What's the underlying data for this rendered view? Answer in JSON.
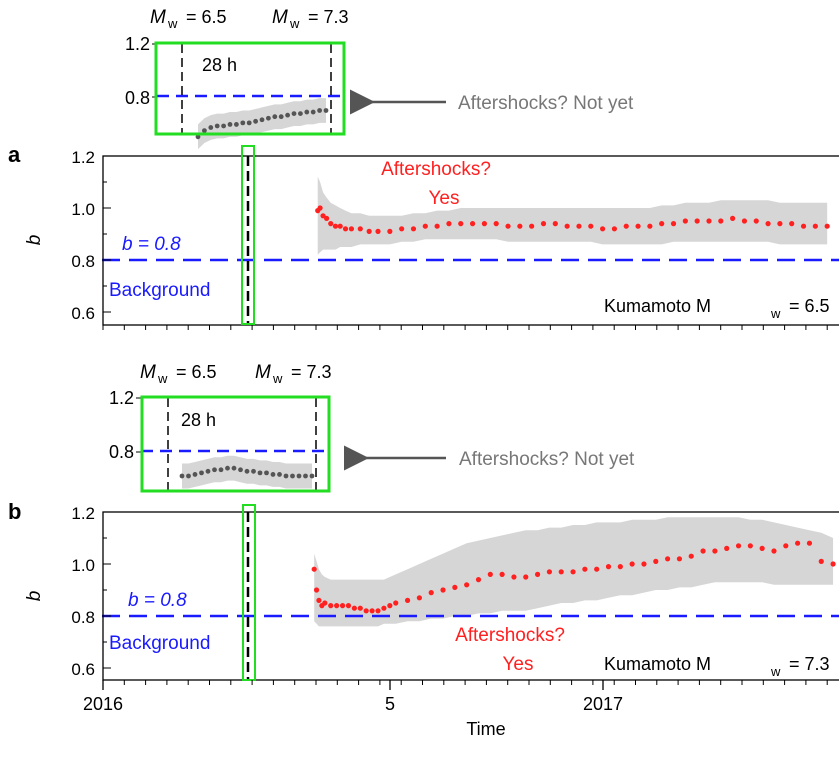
{
  "chart_data": [
    {
      "panel": "a",
      "type": "scatter",
      "ylabel": "b",
      "ylim": [
        0.5,
        1.2
      ],
      "yticks": [
        "0.6",
        "0.8",
        "1.0",
        "1.2"
      ],
      "background_line": 0.8,
      "labels": {
        "b_eq": "b = 0.8",
        "background": "Background",
        "aftershocks": [
          "Aftershocks?",
          "Yes"
        ],
        "event": "Kumamoto M",
        "event_sub": "w",
        "event_val": " = 6.5"
      },
      "series": [
        {
          "color": "#ff2020",
          "x": [
            0.118,
            0.122,
            0.127,
            0.133,
            0.14,
            0.148,
            0.156,
            0.165,
            0.175,
            0.19,
            0.205,
            0.22,
            0.24,
            0.26,
            0.28,
            0.3,
            0.32,
            0.34,
            0.36,
            0.38,
            0.4,
            0.42,
            0.44,
            0.46,
            0.48,
            0.5,
            0.52,
            0.54,
            0.56,
            0.58,
            0.6,
            0.62,
            0.64,
            0.66,
            0.68,
            0.7,
            0.72,
            0.74,
            0.76,
            0.78,
            0.8,
            0.82,
            0.84,
            0.86,
            0.88,
            0.9,
            0.92,
            0.94,
            0.96,
            0.98
          ],
          "y": [
            0.99,
            1.0,
            0.97,
            0.96,
            0.94,
            0.93,
            0.93,
            0.92,
            0.92,
            0.92,
            0.91,
            0.91,
            0.91,
            0.92,
            0.92,
            0.93,
            0.93,
            0.94,
            0.94,
            0.94,
            0.94,
            0.94,
            0.93,
            0.93,
            0.93,
            0.94,
            0.94,
            0.93,
            0.93,
            0.93,
            0.92,
            0.92,
            0.93,
            0.93,
            0.93,
            0.94,
            0.94,
            0.95,
            0.95,
            0.95,
            0.95,
            0.96,
            0.95,
            0.95,
            0.94,
            0.94,
            0.94,
            0.93,
            0.93,
            0.93
          ]
        }
      ],
      "band_lower": [
        0.82,
        0.83,
        0.84,
        0.84,
        0.84,
        0.84,
        0.85,
        0.85,
        0.85,
        0.86,
        0.86,
        0.86,
        0.86,
        0.87,
        0.87,
        0.88,
        0.88,
        0.88,
        0.88,
        0.88,
        0.88,
        0.88,
        0.87,
        0.87,
        0.87,
        0.87,
        0.87,
        0.87,
        0.87,
        0.87,
        0.86,
        0.86,
        0.86,
        0.86,
        0.86,
        0.86,
        0.87,
        0.87,
        0.87,
        0.87,
        0.87,
        0.87,
        0.87,
        0.87,
        0.87,
        0.86,
        0.86,
        0.86,
        0.86,
        0.86
      ],
      "band_upper": [
        1.12,
        1.1,
        1.06,
        1.04,
        1.02,
        1.01,
        1.0,
        0.99,
        0.98,
        0.98,
        0.97,
        0.97,
        0.97,
        0.97,
        0.98,
        0.98,
        0.99,
        0.99,
        1.0,
        1.0,
        1.0,
        1.0,
        1.0,
        1.0,
        1.0,
        1.0,
        1.0,
        1.0,
        1.0,
        1.0,
        1.0,
        1.0,
        1.0,
        1.0,
        1.0,
        1.01,
        1.01,
        1.02,
        1.02,
        1.02,
        1.03,
        1.03,
        1.03,
        1.03,
        1.03,
        1.02,
        1.02,
        1.02,
        1.02,
        1.02
      ]
    },
    {
      "panel": "a-inset",
      "type": "scatter",
      "ylim": [
        0.45,
        1.2
      ],
      "yticks": [
        "0.8",
        "1.2"
      ],
      "background_line": 0.8,
      "labels": {
        "m1": "M",
        "m1_sub": "w",
        "m1_val": " = 6.5",
        "m2": "M",
        "m2_sub": "w",
        "m2_val": " = 7.3",
        "duration": "28 h",
        "arrow_text": "Aftershocks? Not yet"
      },
      "series": [
        {
          "color": "#555555",
          "x": [
            0.0,
            0.05,
            0.1,
            0.15,
            0.2,
            0.25,
            0.3,
            0.35,
            0.4,
            0.45,
            0.5,
            0.55,
            0.6,
            0.65,
            0.7,
            0.75,
            0.8,
            0.85,
            0.9,
            0.95,
            1.0
          ],
          "y": [
            0.6,
            0.64,
            0.66,
            0.67,
            0.67,
            0.68,
            0.68,
            0.69,
            0.69,
            0.7,
            0.71,
            0.72,
            0.73,
            0.73,
            0.74,
            0.75,
            0.75,
            0.76,
            0.76,
            0.77,
            0.77
          ]
        }
      ]
    },
    {
      "panel": "b",
      "type": "scatter",
      "ylabel": "b",
      "xlabel": "Time",
      "ylim": [
        0.5,
        1.2
      ],
      "yticks": [
        "0.6",
        "0.8",
        "1.0",
        "1.2"
      ],
      "xticks": [
        "2016",
        "5",
        "2017"
      ],
      "background_line": 0.8,
      "labels": {
        "b_eq": "b = 0.8",
        "background": "Background",
        "aftershocks": [
          "Aftershocks?",
          "Yes"
        ],
        "event": "Kumamoto M",
        "event_sub": "w",
        "event_val": " = 7.3"
      },
      "series": [
        {
          "color": "#ff2020",
          "x": [
            0.112,
            0.116,
            0.12,
            0.125,
            0.13,
            0.14,
            0.15,
            0.16,
            0.17,
            0.18,
            0.19,
            0.2,
            0.21,
            0.22,
            0.23,
            0.24,
            0.25,
            0.27,
            0.29,
            0.31,
            0.33,
            0.35,
            0.37,
            0.39,
            0.41,
            0.43,
            0.45,
            0.47,
            0.49,
            0.51,
            0.53,
            0.55,
            0.57,
            0.59,
            0.61,
            0.63,
            0.65,
            0.67,
            0.69,
            0.71,
            0.73,
            0.75,
            0.77,
            0.79,
            0.81,
            0.83,
            0.85,
            0.87,
            0.89,
            0.91,
            0.93,
            0.95,
            0.97,
            0.99
          ],
          "y": [
            0.98,
            0.9,
            0.86,
            0.84,
            0.85,
            0.84,
            0.84,
            0.84,
            0.84,
            0.83,
            0.83,
            0.82,
            0.82,
            0.82,
            0.83,
            0.84,
            0.85,
            0.86,
            0.87,
            0.89,
            0.9,
            0.91,
            0.92,
            0.94,
            0.96,
            0.96,
            0.95,
            0.95,
            0.96,
            0.97,
            0.97,
            0.97,
            0.98,
            0.98,
            0.99,
            0.99,
            1.0,
            1.0,
            1.01,
            1.02,
            1.02,
            1.03,
            1.05,
            1.05,
            1.06,
            1.07,
            1.07,
            1.06,
            1.05,
            1.07,
            1.08,
            1.08,
            1.01,
            1.0
          ]
        }
      ],
      "band_lower": [
        0.78,
        0.77,
        0.76,
        0.76,
        0.76,
        0.76,
        0.76,
        0.76,
        0.76,
        0.76,
        0.76,
        0.76,
        0.76,
        0.76,
        0.77,
        0.77,
        0.77,
        0.78,
        0.78,
        0.79,
        0.79,
        0.8,
        0.8,
        0.81,
        0.81,
        0.82,
        0.82,
        0.82,
        0.83,
        0.84,
        0.85,
        0.85,
        0.86,
        0.86,
        0.87,
        0.88,
        0.88,
        0.89,
        0.9,
        0.9,
        0.91,
        0.91,
        0.92,
        0.93,
        0.93,
        0.93,
        0.93,
        0.93,
        0.92,
        0.92,
        0.92,
        0.92,
        0.92,
        0.92
      ],
      "band_upper": [
        1.04,
        1.01,
        0.98,
        0.96,
        0.95,
        0.94,
        0.94,
        0.94,
        0.94,
        0.94,
        0.94,
        0.94,
        0.94,
        0.94,
        0.94,
        0.95,
        0.96,
        0.98,
        1.0,
        1.02,
        1.04,
        1.06,
        1.08,
        1.09,
        1.1,
        1.11,
        1.12,
        1.13,
        1.13,
        1.14,
        1.14,
        1.15,
        1.15,
        1.16,
        1.16,
        1.16,
        1.17,
        1.17,
        1.17,
        1.18,
        1.18,
        1.18,
        1.18,
        1.18,
        1.18,
        1.18,
        1.17,
        1.17,
        1.16,
        1.15,
        1.14,
        1.13,
        1.12,
        1.1
      ]
    },
    {
      "panel": "b-inset",
      "type": "scatter",
      "ylim": [
        0.45,
        1.2
      ],
      "yticks": [
        "0.8",
        "1.2"
      ],
      "background_line": 0.8,
      "labels": {
        "m1": "M",
        "m1_sub": "w",
        "m1_val": " = 6.5",
        "m2": "M",
        "m2_sub": "w",
        "m2_val": " = 7.3",
        "duration": "28 h",
        "arrow_text": "Aftershocks? Not yet"
      },
      "series": [
        {
          "color": "#555555",
          "x": [
            0.0,
            0.05,
            0.1,
            0.15,
            0.2,
            0.25,
            0.3,
            0.35,
            0.4,
            0.45,
            0.5,
            0.55,
            0.6,
            0.65,
            0.7,
            0.75,
            0.8,
            0.85,
            0.9,
            0.95,
            1.0
          ],
          "y": [
            0.7,
            0.7,
            0.71,
            0.72,
            0.73,
            0.74,
            0.74,
            0.75,
            0.75,
            0.74,
            0.73,
            0.73,
            0.72,
            0.72,
            0.71,
            0.71,
            0.7,
            0.7,
            0.7,
            0.7,
            0.7
          ]
        }
      ]
    }
  ],
  "colors": {
    "points": "#ff2020",
    "inset_points": "#555555",
    "band": "#d6d6d6",
    "background_line": "#1a1aff",
    "highlight": "#22dd22",
    "event_line": "#000000"
  },
  "panel_letters": [
    "a",
    "b"
  ]
}
